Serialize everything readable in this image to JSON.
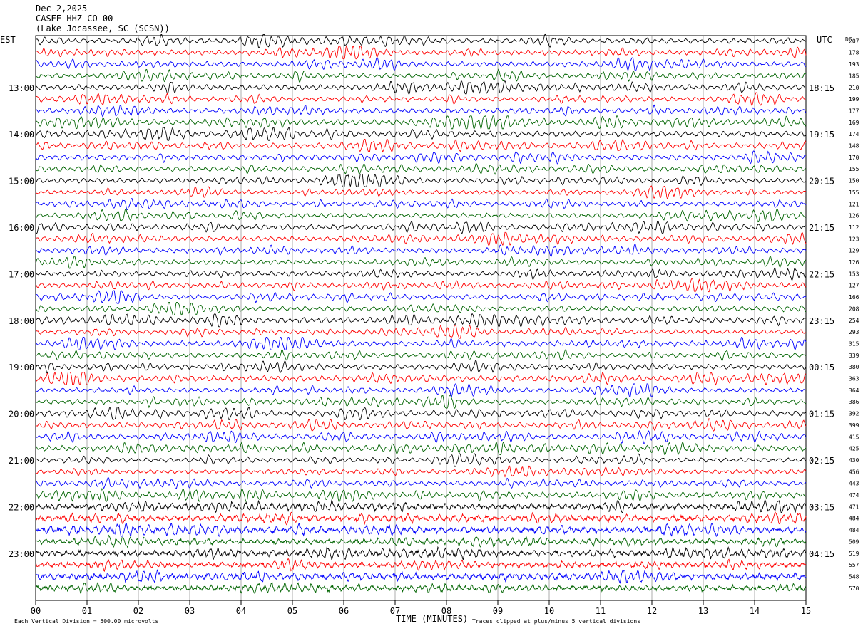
{
  "header": {
    "date": "Dec 2,2025",
    "station": "CASEE HHZ CO 00",
    "location": "(Lake Jocassee, SC (SCSN))"
  },
  "chart_data": {
    "type": "line",
    "title": "",
    "left_timezone": "EST",
    "right_timezone": "UTC",
    "dc_header": "DC",
    "xlabel": "TIME (MINUTES)",
    "xlim": [
      0,
      15
    ],
    "x_tick_labels": [
      "00",
      "01",
      "02",
      "03",
      "04",
      "05",
      "06",
      "07",
      "08",
      "09",
      "10",
      "11",
      "12",
      "13",
      "14",
      "15"
    ],
    "row_duration_minutes": 15,
    "trace_colors": [
      "#000000",
      "#ff0000",
      "#0000ff",
      "#006400"
    ],
    "left_hour_labels": [
      "13:00",
      "14:00",
      "15:00",
      "16:00",
      "17:00",
      "18:00",
      "19:00",
      "20:00",
      "21:00",
      "22:00",
      "23:00"
    ],
    "right_hour_labels": [
      "18:15",
      "19:15",
      "20:15",
      "21:15",
      "22:15",
      "23:15",
      "00:15",
      "01:15",
      "02:15",
      "03:15",
      "04:15"
    ],
    "hour_label_first_row_index": 4,
    "rows_per_hour": 4,
    "dc_offsets": [
      207,
      178,
      193,
      185,
      210,
      199,
      177,
      169,
      174,
      148,
      170,
      155,
      150,
      155,
      121,
      126,
      112,
      123,
      129,
      126,
      153,
      127,
      166,
      208,
      254,
      293,
      315,
      339,
      380,
      363,
      364,
      386,
      392,
      399,
      415,
      425,
      430,
      456,
      443,
      474,
      471,
      484,
      484,
      509,
      519,
      557,
      548,
      570
    ],
    "footer_left": "Each Vertical Division =  500.00 microvolts",
    "footer_right": "Traces clipped at plus/minus 5 vertical divisions"
  }
}
